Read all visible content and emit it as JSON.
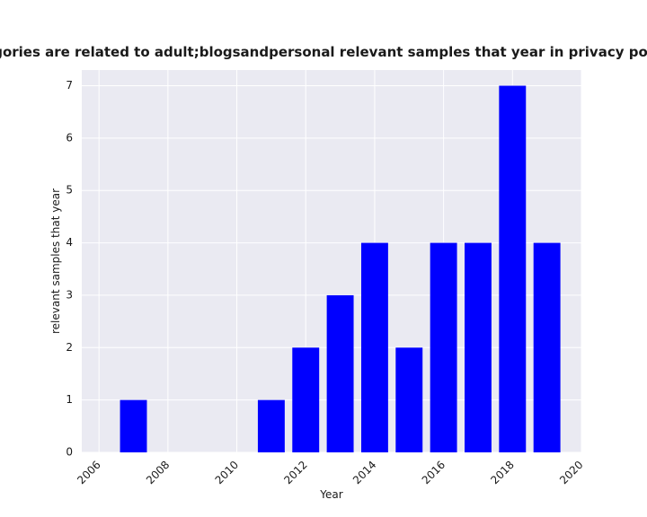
{
  "chart_data": {
    "type": "bar",
    "title": "categories are related to adult;blogsandpersonal relevant samples that year in privacy policies",
    "xlabel": "Year",
    "ylabel": "relevant samples that year",
    "x": [
      2007,
      2011,
      2012,
      2013,
      2014,
      2015,
      2016,
      2017,
      2018,
      2019
    ],
    "values": [
      1,
      1,
      2,
      3,
      4,
      2,
      4,
      4,
      7,
      4
    ],
    "xlim": [
      2005.5,
      2020
    ],
    "ylim": [
      0,
      7.3
    ],
    "xticks": [
      2006,
      2008,
      2010,
      2012,
      2014,
      2016,
      2018,
      2020
    ],
    "yticks": [
      0,
      1,
      2,
      3,
      4,
      5,
      6,
      7
    ],
    "bar_color": "#0000ff",
    "background_color": "#eaeaf2",
    "grid": true,
    "grid_color": "#ffffff"
  }
}
